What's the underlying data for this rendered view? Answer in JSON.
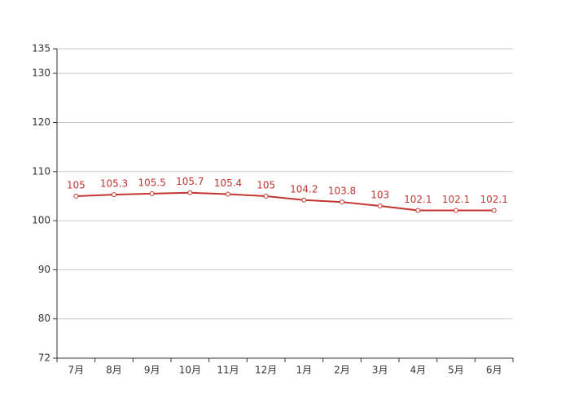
{
  "chart_data": {
    "type": "line",
    "categories": [
      "7月",
      "8月",
      "9月",
      "10月",
      "11月",
      "12月",
      "1月",
      "2月",
      "3月",
      "4月",
      "5月",
      "6月"
    ],
    "series": [
      {
        "color": "#c23531",
        "values": [
          105,
          105.3,
          105.5,
          105.7,
          105.4,
          105,
          104.2,
          103.8,
          103,
          102.1,
          102.1,
          102.1
        ]
      }
    ],
    "ylim": [
      72,
      135
    ],
    "yticks": [
      72,
      80,
      90,
      100,
      110,
      120,
      130,
      135
    ],
    "grid": true
  }
}
